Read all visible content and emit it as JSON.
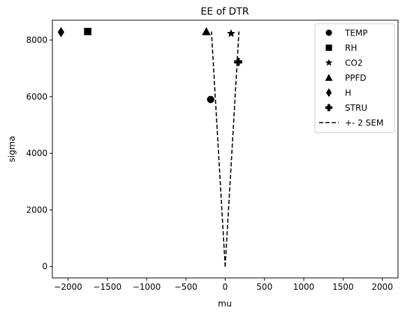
{
  "chart_data": {
    "type": "scatter",
    "title": "EE of DTR",
    "xlabel": "mu",
    "ylabel": "sigma",
    "xlim": [
      -2200,
      2200
    ],
    "ylim": [
      -400,
      8700
    ],
    "xticks": [
      -2000,
      -1500,
      -1000,
      -500,
      0,
      500,
      1000,
      1500,
      2000
    ],
    "xtick_labels": [
      "−2000",
      "−1500",
      "−1000",
      "−500",
      "0",
      "500",
      "1000",
      "1500",
      "2000"
    ],
    "yticks": [
      0,
      2000,
      4000,
      6000,
      8000
    ],
    "ytick_labels": [
      "0",
      "2000",
      "4000",
      "6000",
      "8000"
    ],
    "grid": false,
    "legend_position": "top-right",
    "series": [
      {
        "name": "TEMP",
        "marker": "circle",
        "x": -185,
        "y": 5900
      },
      {
        "name": "RH",
        "marker": "square",
        "x": -1750,
        "y": 8300
      },
      {
        "name": "CO2",
        "marker": "star",
        "x": 75,
        "y": 8230
      },
      {
        "name": "PPFD",
        "marker": "triangle",
        "x": -240,
        "y": 8300
      },
      {
        "name": "H",
        "marker": "diamond",
        "x": -2090,
        "y": 8280
      },
      {
        "name": "STRU",
        "marker": "plus",
        "x": 165,
        "y": 7230
      }
    ],
    "sem_band": {
      "name": "+- 2 SEM",
      "style": "dashed",
      "left": [
        [
          0,
          0
        ],
        [
          -175,
          8300
        ]
      ],
      "right": [
        [
          0,
          0
        ],
        [
          175,
          8300
        ]
      ]
    },
    "color": "#000000"
  }
}
